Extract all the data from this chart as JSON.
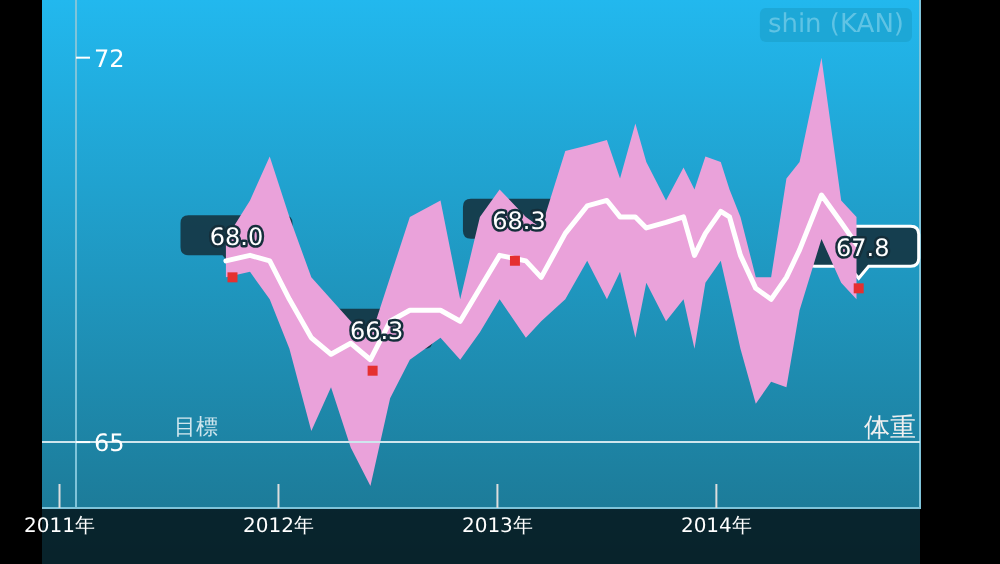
{
  "chart_data": {
    "type": "line",
    "ylabel": "体重",
    "annotations": [
      "shin (KAN)"
    ],
    "xlim": [
      2010.92,
      2014.93
    ],
    "ylim": [
      63.8,
      73.05
    ],
    "xticks": [
      {
        "value": 2011,
        "label": "2011年"
      },
      {
        "value": 2012,
        "label": "2012年"
      },
      {
        "value": 2013,
        "label": "2013年"
      },
      {
        "value": 2014,
        "label": "2014年"
      }
    ],
    "yticks": [
      65,
      72
    ],
    "grid": false,
    "ref_lines": [
      {
        "axis": "y",
        "value": 65,
        "label": "目標",
        "color": "#cfe6ee"
      }
    ],
    "series": [
      {
        "color": "#ffffff",
        "marker": "none",
        "x": [
          2011.76,
          2011.87,
          2011.96,
          2012.05,
          2012.15,
          2012.24,
          2012.33,
          2012.42,
          2012.51,
          2012.6,
          2012.74,
          2012.83,
          2012.92,
          2013.01,
          2013.13,
          2013.2,
          2013.31,
          2013.41,
          2013.5,
          2013.56,
          2013.63,
          2013.68,
          2013.77,
          2013.85,
          2013.9,
          2013.95,
          2014.02,
          2014.06,
          2014.11,
          2014.18,
          2014.25,
          2014.32,
          2014.38,
          2014.48,
          2014.57,
          2014.64
        ],
        "values": [
          68.3,
          68.4,
          68.3,
          67.6,
          66.9,
          66.6,
          66.8,
          66.5,
          67.2,
          67.4,
          67.4,
          67.2,
          67.8,
          68.4,
          68.3,
          68.0,
          68.8,
          69.3,
          69.4,
          69.1,
          69.1,
          68.9,
          69.0,
          69.1,
          68.4,
          68.8,
          69.2,
          69.1,
          68.4,
          67.8,
          67.6,
          68.0,
          68.5,
          69.5,
          69.0,
          68.6
        ],
        "upper": [
          68.7,
          69.4,
          70.2,
          69.1,
          68.0,
          67.6,
          67.2,
          66.9,
          68.0,
          69.1,
          69.4,
          67.6,
          69.1,
          69.6,
          69.1,
          68.9,
          70.3,
          70.4,
          70.5,
          69.8,
          70.8,
          70.1,
          69.4,
          70.0,
          69.6,
          70.2,
          70.1,
          69.6,
          69.1,
          68.0,
          68.0,
          69.8,
          70.1,
          72.0,
          69.4,
          69.1
        ],
        "lower": [
          68.0,
          68.1,
          67.6,
          66.7,
          65.2,
          66.0,
          64.9,
          64.2,
          65.8,
          66.5,
          66.9,
          66.5,
          67.0,
          67.6,
          66.9,
          67.2,
          67.6,
          68.3,
          67.6,
          68.1,
          66.9,
          67.9,
          67.2,
          67.6,
          66.7,
          67.9,
          68.3,
          67.6,
          66.7,
          65.7,
          66.1,
          66.0,
          67.4,
          68.7,
          67.9,
          67.6
        ]
      },
      {
        "type": "scatter",
        "color": "#e53030",
        "marker": "square",
        "x": [
          2011.79,
          2012.43,
          2013.08,
          2014.65
        ],
        "values": [
          68.0,
          66.3,
          68.3,
          67.8
        ],
        "value_labels": [
          "68.0",
          "66.3",
          "68.3",
          "67.8"
        ]
      }
    ]
  }
}
